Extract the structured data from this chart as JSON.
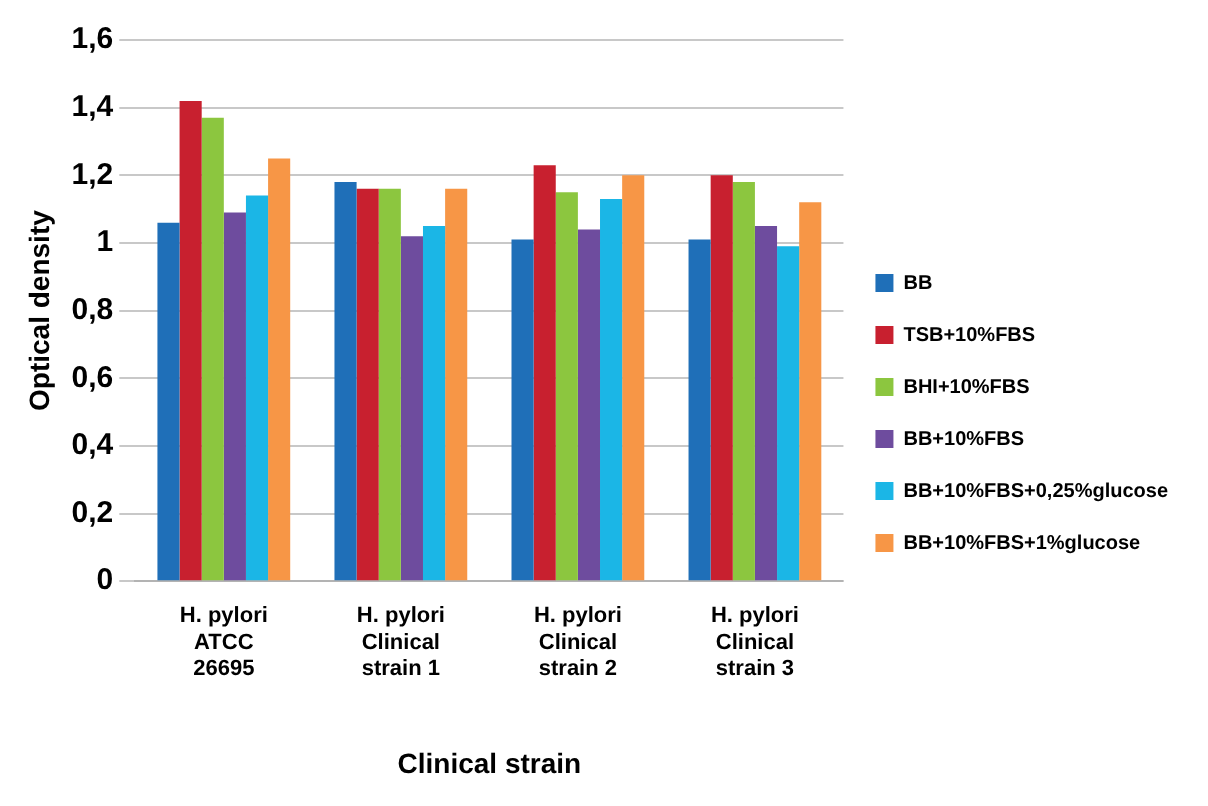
{
  "chart_data": {
    "type": "bar",
    "xlabel": "Clinical strain",
    "ylabel": "Optical density",
    "categories": [
      "H. pylori\nATCC\n26695",
      "H. pylori\nClinical\nstrain 1",
      "H. pylori\nClinical\nstrain 2",
      "H. pylori\nClinical\nstrain 3"
    ],
    "series": [
      {
        "name": "BB",
        "color": "#1f6fb8",
        "values": [
          1.06,
          1.18,
          1.01,
          1.01
        ]
      },
      {
        "name": "TSB+10%FBS",
        "color": "#c8202f",
        "values": [
          1.42,
          1.16,
          1.23,
          1.2
        ]
      },
      {
        "name": "BHI+10%FBS",
        "color": "#8cc63f",
        "values": [
          1.37,
          1.16,
          1.15,
          1.18
        ]
      },
      {
        "name": "BB+10%FBS",
        "color": "#6e4c9e",
        "values": [
          1.09,
          1.02,
          1.04,
          1.05
        ]
      },
      {
        "name": "BB+10%FBS+0,25%glucose",
        "color": "#1bb6e6",
        "values": [
          1.14,
          1.05,
          1.13,
          0.99
        ]
      },
      {
        "name": "BB+10%FBS+1%glucose",
        "color": "#f79646",
        "values": [
          1.25,
          1.16,
          1.2,
          1.12
        ]
      }
    ],
    "ylim": [
      0,
      1.6
    ],
    "yticks": [
      0,
      {
        "value": 0.2,
        "label": "0,2"
      },
      {
        "value": 0.4,
        "label": "0,4"
      },
      {
        "value": 0.6,
        "label": "0,6"
      },
      {
        "value": 0.8,
        "label": "0,8"
      },
      1,
      {
        "value": 1.2,
        "label": "1,2"
      },
      {
        "value": 1.4,
        "label": "1,4"
      },
      {
        "value": 1.6,
        "label": "1,6"
      }
    ],
    "grid": "y",
    "legend": "right"
  }
}
